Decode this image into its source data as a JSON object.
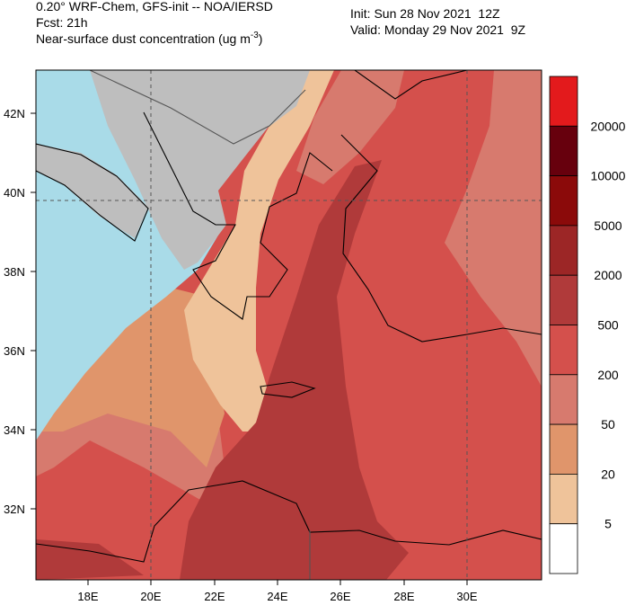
{
  "header": {
    "title": "0.20° WRF-Chem, GFS-init -- NOA/IERSD",
    "forecast": "Fcst: 21h",
    "variable": "Near-surface dust concentration (ug m",
    "units_exponent": "-3",
    "variable_end": ")",
    "init": "Init: Sun 28 Nov 2021  12Z",
    "valid": "Valid: Monday 29 Nov 2021  9Z"
  },
  "map": {
    "lat_labels": [
      "42N",
      "40N",
      "38N",
      "36N",
      "34N",
      "32N"
    ],
    "lon_labels": [
      "18E",
      "20E",
      "22E",
      "24E",
      "26E",
      "28E",
      "30E"
    ]
  },
  "colorbar": {
    "colors": [
      "#e31a1c",
      "#67000d",
      "#8b0a0a",
      "#9c2626",
      "#b03a3a",
      "#d4504c",
      "#d77a6e",
      "#e0956b",
      "#efc39a",
      "#ffffff"
    ],
    "labels": [
      20000,
      10000,
      5000,
      2000,
      500,
      200,
      50,
      20,
      5
    ]
  }
}
